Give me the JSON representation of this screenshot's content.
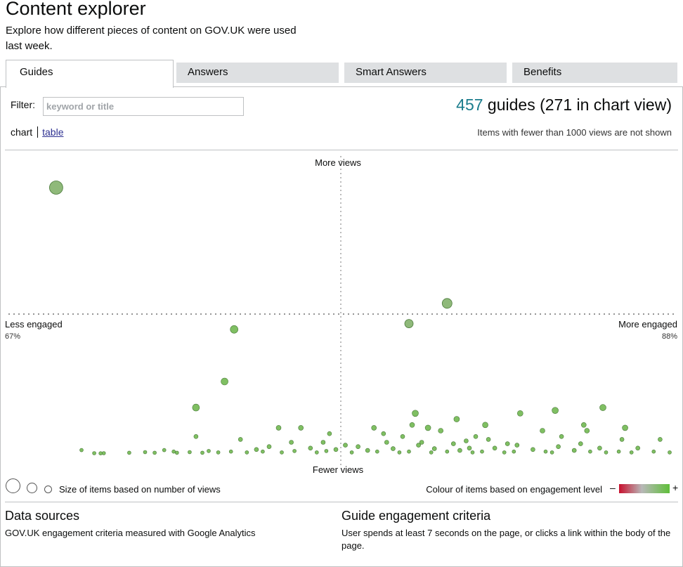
{
  "page": {
    "title": "Content explorer",
    "intro": "Explore how different pieces of content on GOV.UK were used last week."
  },
  "tabs": [
    {
      "label": "Guides",
      "active": true
    },
    {
      "label": "Answers",
      "active": false
    },
    {
      "label": "Smart Answers",
      "active": false
    },
    {
      "label": "Benefits",
      "active": false
    }
  ],
  "filter": {
    "label": "Filter:",
    "placeholder": "keyword or title",
    "value": ""
  },
  "summary": {
    "count": "457",
    "text": "guides (271 in chart view)"
  },
  "view_toggle": {
    "current": "chart",
    "link": "table"
  },
  "note": "Items with fewer than 1000 views are not shown",
  "chart_data": {
    "type": "scatter",
    "labels": {
      "top": "More views",
      "bottom": "Fewer views",
      "left": "Less engaged",
      "right": "More engaged",
      "left_value": "67%",
      "right_value": "88%"
    },
    "xlim": [
      67,
      88
    ],
    "colour_scale": {
      "low": "#c8102e",
      "mid": "#b8b8b8",
      "high": "#5fbf3a"
    },
    "dots": [
      {
        "x": 68.5,
        "y": 0.92,
        "r": 9.5
      },
      {
        "x": 80.8,
        "y": 0.52,
        "r": 7
      },
      {
        "x": 79.6,
        "y": 0.45,
        "r": 6
      },
      {
        "x": 73.8,
        "y": 0.25,
        "r": 5
      },
      {
        "x": 72.9,
        "y": 0.16,
        "r": 5
      },
      {
        "x": 74.1,
        "y": 0.43,
        "r": 5.5
      },
      {
        "x": 79.8,
        "y": 0.14,
        "r": 4.5
      },
      {
        "x": 84.2,
        "y": 0.15,
        "r": 4.5
      },
      {
        "x": 85.7,
        "y": 0.16,
        "r": 4.5
      },
      {
        "x": 82.0,
        "y": 0.1,
        "r": 4
      },
      {
        "x": 81.1,
        "y": 0.12,
        "r": 4
      },
      {
        "x": 80.2,
        "y": 0.09,
        "r": 4
      },
      {
        "x": 86.4,
        "y": 0.09,
        "r": 4
      },
      {
        "x": 75.5,
        "y": 0.09,
        "r": 3.5
      },
      {
        "x": 78.5,
        "y": 0.09,
        "r": 3.5
      },
      {
        "x": 76.2,
        "y": 0.09,
        "r": 3.5
      },
      {
        "x": 72.9,
        "y": 0.06,
        "r": 3
      },
      {
        "x": 74.3,
        "y": 0.05,
        "r": 3
      },
      {
        "x": 77.1,
        "y": 0.07,
        "r": 3
      },
      {
        "x": 80.6,
        "y": 0.08,
        "r": 3.5
      },
      {
        "x": 83.8,
        "y": 0.08,
        "r": 3.5
      },
      {
        "x": 85.2,
        "y": 0.08,
        "r": 3.5
      },
      {
        "x": 86.3,
        "y": 0.05,
        "r": 3
      },
      {
        "x": 81.7,
        "y": 0.06,
        "r": 3
      },
      {
        "x": 79.4,
        "y": 0.06,
        "r": 3
      },
      {
        "x": 84.4,
        "y": 0.06,
        "r": 3
      },
      {
        "x": 87.5,
        "y": 0.05,
        "r": 3
      },
      {
        "x": 75.9,
        "y": 0.04,
        "r": 3
      },
      {
        "x": 76.9,
        "y": 0.04,
        "r": 3
      },
      {
        "x": 78.9,
        "y": 0.04,
        "r": 3
      },
      {
        "x": 80.0,
        "y": 0.04,
        "r": 3
      },
      {
        "x": 81.0,
        "y": 0.035,
        "r": 3
      },
      {
        "x": 82.7,
        "y": 0.035,
        "r": 3
      },
      {
        "x": 85.0,
        "y": 0.035,
        "r": 3
      },
      {
        "x": 77.6,
        "y": 0.03,
        "r": 3
      },
      {
        "x": 79.9,
        "y": 0.03,
        "r": 3
      },
      {
        "x": 83.0,
        "y": 0.03,
        "r": 3
      },
      {
        "x": 84.3,
        "y": 0.025,
        "r": 3
      },
      {
        "x": 78.0,
        "y": 0.025,
        "r": 3
      },
      {
        "x": 75.2,
        "y": 0.025,
        "r": 3
      },
      {
        "x": 76.5,
        "y": 0.02,
        "r": 3
      },
      {
        "x": 81.5,
        "y": 0.02,
        "r": 3
      },
      {
        "x": 82.3,
        "y": 0.02,
        "r": 3
      },
      {
        "x": 85.6,
        "y": 0.02,
        "r": 3
      },
      {
        "x": 86.8,
        "y": 0.02,
        "r": 3
      },
      {
        "x": 79.1,
        "y": 0.018,
        "r": 3
      },
      {
        "x": 80.4,
        "y": 0.018,
        "r": 3
      },
      {
        "x": 83.5,
        "y": 0.015,
        "r": 3
      },
      {
        "x": 74.8,
        "y": 0.015,
        "r": 3
      },
      {
        "x": 77.3,
        "y": 0.015,
        "r": 3
      },
      {
        "x": 78.3,
        "y": 0.012,
        "r": 3
      },
      {
        "x": 84.8,
        "y": 0.012,
        "r": 3
      },
      {
        "x": 81.2,
        "y": 0.012,
        "r": 3
      },
      {
        "x": 73.3,
        "y": 0.01,
        "r": 2.5
      },
      {
        "x": 74.0,
        "y": 0.008,
        "r": 2.5
      },
      {
        "x": 75.0,
        "y": 0.008,
        "r": 2.5
      },
      {
        "x": 76.0,
        "y": 0.01,
        "r": 2.5
      },
      {
        "x": 77.0,
        "y": 0.01,
        "r": 2.5
      },
      {
        "x": 78.6,
        "y": 0.008,
        "r": 2.5
      },
      {
        "x": 79.6,
        "y": 0.008,
        "r": 2.5
      },
      {
        "x": 80.8,
        "y": 0.008,
        "r": 2.5
      },
      {
        "x": 81.9,
        "y": 0.008,
        "r": 2.5
      },
      {
        "x": 82.9,
        "y": 0.008,
        "r": 2.5
      },
      {
        "x": 83.9,
        "y": 0.008,
        "r": 2.5
      },
      {
        "x": 85.3,
        "y": 0.008,
        "r": 2.5
      },
      {
        "x": 86.2,
        "y": 0.008,
        "r": 2.5
      },
      {
        "x": 87.3,
        "y": 0.008,
        "r": 2.5
      },
      {
        "x": 87.8,
        "y": 0.005,
        "r": 2.5
      },
      {
        "x": 76.7,
        "y": 0.005,
        "r": 2.5
      },
      {
        "x": 77.8,
        "y": 0.005,
        "r": 2.5
      },
      {
        "x": 79.3,
        "y": 0.005,
        "r": 2.5
      },
      {
        "x": 80.3,
        "y": 0.005,
        "r": 2.5
      },
      {
        "x": 81.6,
        "y": 0.005,
        "r": 2.5
      },
      {
        "x": 82.6,
        "y": 0.005,
        "r": 2.5
      },
      {
        "x": 84.1,
        "y": 0.005,
        "r": 2.5
      },
      {
        "x": 85.8,
        "y": 0.005,
        "r": 2.5
      },
      {
        "x": 86.6,
        "y": 0.005,
        "r": 2.5
      },
      {
        "x": 75.6,
        "y": 0.005,
        "r": 2.5
      },
      {
        "x": 74.5,
        "y": 0.005,
        "r": 2.5
      },
      {
        "x": 73.6,
        "y": 0.005,
        "r": 2.5
      },
      {
        "x": 72.7,
        "y": 0.006,
        "r": 2.5
      },
      {
        "x": 72.3,
        "y": 0.004,
        "r": 2.5
      },
      {
        "x": 71.9,
        "y": 0.013,
        "r": 2.5
      },
      {
        "x": 71.6,
        "y": 0.004,
        "r": 2.5
      },
      {
        "x": 71.3,
        "y": 0.006,
        "r": 2.5
      },
      {
        "x": 70.8,
        "y": 0.004,
        "r": 2.5
      },
      {
        "x": 69.9,
        "y": 0.002,
        "r": 2.5
      },
      {
        "x": 70.0,
        "y": 0.0025,
        "r": 2.5
      },
      {
        "x": 69.7,
        "y": 0.0025,
        "r": 2.5
      },
      {
        "x": 69.3,
        "y": 0.013,
        "r": 2.5
      },
      {
        "x": 72.2,
        "y": 0.008,
        "r": 2.5
      },
      {
        "x": 73.1,
        "y": 0.004,
        "r": 2.5
      },
      {
        "x": 78.8,
        "y": 0.07,
        "r": 3
      },
      {
        "x": 82.1,
        "y": 0.05,
        "r": 3
      },
      {
        "x": 79.7,
        "y": 0.1,
        "r": 3.5
      },
      {
        "x": 81.4,
        "y": 0.045,
        "r": 3
      },
      {
        "x": 85.1,
        "y": 0.1,
        "r": 3.5
      },
      {
        "x": 83.1,
        "y": 0.14,
        "r": 4
      }
    ]
  },
  "legend": {
    "size_text": "Size of items based on number of views",
    "colour_text": "Colour of items based on engagement level",
    "minus": "–",
    "plus": "+"
  },
  "data_sources": {
    "title": "Data sources",
    "body": "GOV.UK engagement criteria measured with Google Analytics"
  },
  "criteria": {
    "title": "Guide engagement criteria",
    "body": "User spends at least 7 seconds on the page, or clicks a link within the body of the page."
  }
}
